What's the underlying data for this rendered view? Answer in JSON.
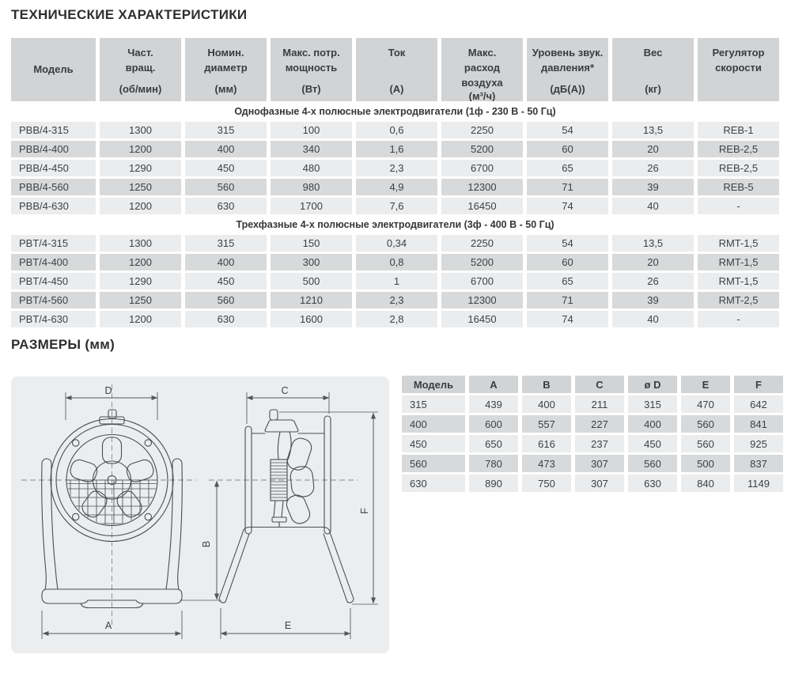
{
  "titles": {
    "specs": "ТЕХНИЧЕСКИЕ ХАРАКТЕРИСТИКИ",
    "dimensions": "РАЗМЕРЫ (мм)"
  },
  "colors": {
    "header_bg": "#d2d3d4",
    "row_light": "#ebeced",
    "row_dark": "#d8d9da",
    "drawing_bg": "#ecedee",
    "text": "#3e4043"
  },
  "spec_table": {
    "headers": [
      {
        "title": "Модель",
        "unit": ""
      },
      {
        "title": "Част.\nвращ.",
        "unit": "(об/мин)"
      },
      {
        "title": "Номин.\nдиаметр",
        "unit": "(мм)"
      },
      {
        "title": "Макс. потр.\nмощность",
        "unit": "(Вт)"
      },
      {
        "title": "Ток",
        "unit": "(А)"
      },
      {
        "title": "Макс.\nрасход\nвоздуха",
        "unit": "(м³/ч)"
      },
      {
        "title": "Уровень звук.\nдавления*",
        "unit": "(дБ(А))"
      },
      {
        "title": "Вес",
        "unit": "(кг)"
      },
      {
        "title": "Регулятор\nскорости",
        "unit": ""
      }
    ],
    "sections": [
      {
        "label": "Однофазные 4-х полюсные электродвигатели (1ф - 230 В - 50 Гц)",
        "rows": [
          [
            "PBB/4-315",
            "1300",
            "315",
            "100",
            "0,6",
            "2250",
            "54",
            "13,5",
            "REB-1"
          ],
          [
            "PBB/4-400",
            "1200",
            "400",
            "340",
            "1,6",
            "5200",
            "60",
            "20",
            "REB-2,5"
          ],
          [
            "PBB/4-450",
            "1290",
            "450",
            "480",
            "2,3",
            "6700",
            "65",
            "26",
            "REB-2,5"
          ],
          [
            "PBB/4-560",
            "1250",
            "560",
            "980",
            "4,9",
            "12300",
            "71",
            "39",
            "REB-5"
          ],
          [
            "PBB/4-630",
            "1200",
            "630",
            "1700",
            "7,6",
            "16450",
            "74",
            "40",
            "-"
          ]
        ]
      },
      {
        "label": "Трехфазные 4-х полюсные электродвигатели (3ф - 400 В - 50 Гц)",
        "rows": [
          [
            "PBT/4-315",
            "1300",
            "315",
            "150",
            "0,34",
            "2250",
            "54",
            "13,5",
            "RMT-1,5"
          ],
          [
            "PBT/4-400",
            "1200",
            "400",
            "300",
            "0,8",
            "5200",
            "60",
            "20",
            "RMT-1,5"
          ],
          [
            "PBT/4-450",
            "1290",
            "450",
            "500",
            "1",
            "6700",
            "65",
            "26",
            "RMT-1,5"
          ],
          [
            "PBT/4-560",
            "1250",
            "560",
            "1210",
            "2,3",
            "12300",
            "71",
            "39",
            "RMT-2,5"
          ],
          [
            "PBT/4-630",
            "1200",
            "630",
            "1600",
            "2,8",
            "16450",
            "74",
            "40",
            "-"
          ]
        ]
      }
    ]
  },
  "dims_table": {
    "headers": [
      "Модель",
      "A",
      "B",
      "C",
      "ø D",
      "E",
      "F"
    ],
    "rows": [
      [
        "315",
        "439",
        "400",
        "211",
        "315",
        "470",
        "642"
      ],
      [
        "400",
        "600",
        "557",
        "227",
        "400",
        "560",
        "841"
      ],
      [
        "450",
        "650",
        "616",
        "237",
        "450",
        "560",
        "925"
      ],
      [
        "560",
        "780",
        "473",
        "307",
        "560",
        "500",
        "837"
      ],
      [
        "630",
        "890",
        "750",
        "307",
        "630",
        "840",
        "1149"
      ]
    ]
  },
  "drawing": {
    "labels": {
      "front_width": "D",
      "front_base": "A",
      "side_depth": "C",
      "side_axis_height": "B",
      "side_leg_span": "E",
      "side_total_height": "F"
    }
  }
}
